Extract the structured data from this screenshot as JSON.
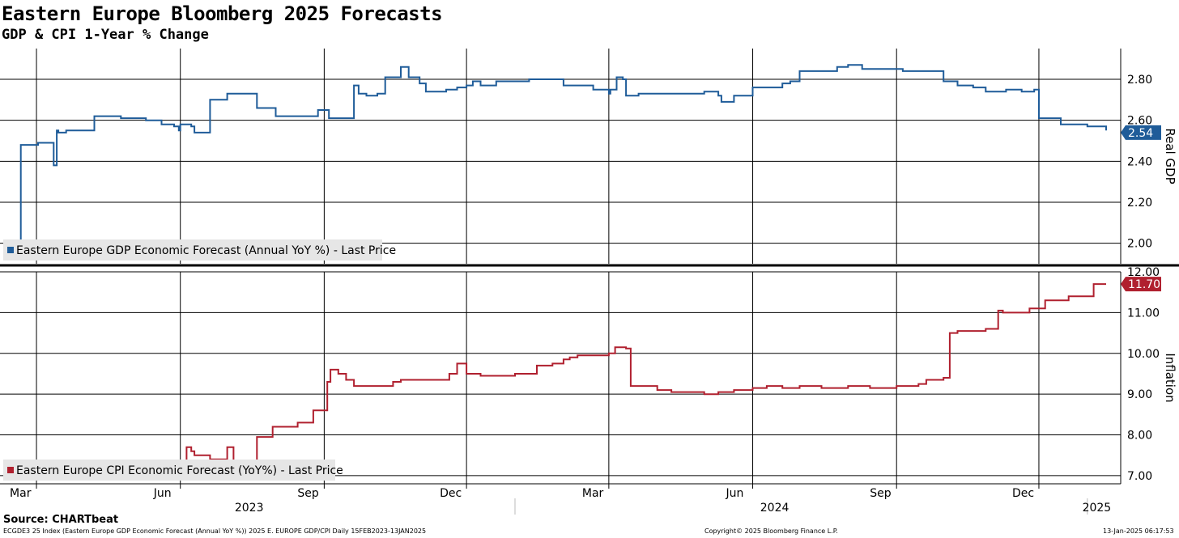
{
  "header": {
    "title": "Eastern Europe Bloomberg 2025 Forecasts",
    "subtitle": "GDP & CPI 1-Year % Change"
  },
  "footer": {
    "source": "Source: CHARTbeat",
    "ticker": "ECGDE3 25 Index (Eastern Europe GDP Economic Forecast (Annual YoY %)) 2025 E. EUROPE GDP/CPI  Daily 15FEB2023-13JAN2025",
    "copyright": "Copyright© 2025 Bloomberg Finance L.P.",
    "timestamp": "13-Jan-2025 06:17:53"
  },
  "colors": {
    "gdp": "#1f5c99",
    "cpi": "#b0202f",
    "grid": "#000000"
  },
  "chart_data": [
    {
      "type": "line",
      "ylabel": "Real GDP",
      "ylim": [
        1.9,
        2.95
      ],
      "yticks": [
        "2.00",
        "2.20",
        "2.40",
        "2.60",
        "2.80"
      ],
      "last_value_label": "2.54",
      "legend": "Eastern Europe GDP Economic Forecast (Annual YoY %) - Last Price",
      "legend_position": "bottom-left",
      "grid": true,
      "series": [
        {
          "name": "Eastern Europe GDP Economic Forecast (Annual YoY %) - Last Price",
          "x": [
            "2023-02-15",
            "2023-02-18",
            "2023-02-19",
            "2023-03-01",
            "2023-03-02",
            "2023-03-10",
            "2023-03-12",
            "2023-03-14",
            "2023-03-15",
            "2023-03-20",
            "2023-04-05",
            "2023-04-07",
            "2023-04-20",
            "2023-04-24",
            "2023-05-08",
            "2023-05-10",
            "2023-05-20",
            "2023-05-28",
            "2023-05-31",
            "2023-06-01",
            "2023-06-05",
            "2023-06-08",
            "2023-06-10",
            "2023-06-20",
            "2023-07-01",
            "2023-07-08",
            "2023-07-10",
            "2023-07-20",
            "2023-08-01",
            "2023-08-10",
            "2023-08-20",
            "2023-08-28",
            "2023-09-01",
            "2023-09-04",
            "2023-09-08",
            "2023-09-12",
            "2023-09-15",
            "2023-09-20",
            "2023-09-23",
            "2023-09-28",
            "2023-10-05",
            "2023-10-10",
            "2023-10-15",
            "2023-10-20",
            "2023-10-25",
            "2023-11-01",
            "2023-11-05",
            "2023-11-12",
            "2023-11-18",
            "2023-11-25",
            "2023-12-01",
            "2023-12-05",
            "2023-12-10",
            "2023-12-20",
            "2024-01-10",
            "2024-01-20",
            "2024-02-01",
            "2024-02-20",
            "2024-03-01",
            "2024-03-02",
            "2024-03-06",
            "2024-03-10",
            "2024-03-12",
            "2024-03-20",
            "2024-04-01",
            "2024-04-10",
            "2024-04-20",
            "2024-05-01",
            "2024-05-10",
            "2024-05-12",
            "2024-05-20",
            "2024-06-01",
            "2024-06-10",
            "2024-06-20",
            "2024-06-25",
            "2024-07-01",
            "2024-07-15",
            "2024-07-25",
            "2024-08-01",
            "2024-08-10",
            "2024-08-20",
            "2024-09-01",
            "2024-09-05",
            "2024-09-10",
            "2024-09-15",
            "2024-09-25",
            "2024-10-01",
            "2024-10-10",
            "2024-10-20",
            "2024-10-28",
            "2024-11-01",
            "2024-11-10",
            "2024-11-20",
            "2024-11-28",
            "2024-12-01",
            "2024-12-15",
            "2025-01-01",
            "2025-01-13"
          ],
          "values": [
            2.0,
            2.0,
            2.48,
            2.48,
            2.49,
            2.49,
            2.38,
            2.55,
            2.54,
            2.55,
            2.55,
            2.62,
            2.62,
            2.61,
            2.61,
            2.6,
            2.58,
            2.57,
            2.55,
            2.58,
            2.58,
            2.57,
            2.54,
            2.7,
            2.73,
            2.73,
            2.73,
            2.66,
            2.62,
            2.62,
            2.62,
            2.65,
            2.65,
            2.61,
            2.61,
            2.61,
            2.61,
            2.77,
            2.73,
            2.72,
            2.73,
            2.81,
            2.81,
            2.86,
            2.81,
            2.78,
            2.74,
            2.74,
            2.75,
            2.76,
            2.77,
            2.79,
            2.77,
            2.79,
            2.8,
            2.8,
            2.77,
            2.75,
            2.73,
            2.75,
            2.81,
            2.8,
            2.72,
            2.73,
            2.73,
            2.73,
            2.73,
            2.74,
            2.72,
            2.69,
            2.72,
            2.76,
            2.76,
            2.78,
            2.79,
            2.84,
            2.84,
            2.86,
            2.87,
            2.85,
            2.85,
            2.85,
            2.84,
            2.84,
            2.84,
            2.84,
            2.79,
            2.77,
            2.76,
            2.74,
            2.74,
            2.75,
            2.74,
            2.75,
            2.61,
            2.58,
            2.57,
            2.55
          ]
        }
      ]
    },
    {
      "type": "line",
      "ylabel": "Inflation",
      "ylim": [
        6.8,
        12.0
      ],
      "yticks": [
        "7.00",
        "8.00",
        "9.00",
        "10.00",
        "11.00",
        "12.00"
      ],
      "last_value_label": "11.70",
      "legend": "Eastern Europe CPI Economic Forecast (YoY%) - Last Price",
      "legend_position": "bottom-left",
      "grid": true,
      "series": [
        {
          "name": "Eastern Europe CPI Economic Forecast (YoY%) - Last Price",
          "x": [
            "2023-02-15",
            "2023-02-22",
            "2023-03-01",
            "2023-03-15",
            "2023-03-17",
            "2023-04-01",
            "2023-04-10",
            "2023-04-12",
            "2023-04-20",
            "2023-05-10",
            "2023-05-18",
            "2023-05-22",
            "2023-05-30",
            "2023-06-01",
            "2023-06-05",
            "2023-06-08",
            "2023-06-10",
            "2023-06-15",
            "2023-06-20",
            "2023-07-01",
            "2023-07-05",
            "2023-07-15",
            "2023-07-20",
            "2023-07-30",
            "2023-08-15",
            "2023-08-25",
            "2023-09-01",
            "2023-09-03",
            "2023-09-05",
            "2023-09-10",
            "2023-09-15",
            "2023-09-20",
            "2023-10-01",
            "2023-10-15",
            "2023-10-20",
            "2023-11-01",
            "2023-11-20",
            "2023-11-25",
            "2023-12-01",
            "2023-12-10",
            "2024-01-01",
            "2024-01-10",
            "2024-01-15",
            "2024-01-25",
            "2024-02-01",
            "2024-02-05",
            "2024-02-10",
            "2024-02-20",
            "2024-03-01",
            "2024-03-05",
            "2024-03-12",
            "2024-03-15",
            "2024-03-25",
            "2024-04-01",
            "2024-04-10",
            "2024-05-01",
            "2024-05-10",
            "2024-05-20",
            "2024-06-01",
            "2024-06-10",
            "2024-06-20",
            "2024-07-01",
            "2024-07-15",
            "2024-08-01",
            "2024-08-15",
            "2024-09-01",
            "2024-09-15",
            "2024-09-20",
            "2024-10-01",
            "2024-10-05",
            "2024-10-10",
            "2024-10-20",
            "2024-10-28",
            "2024-11-05",
            "2024-11-08",
            "2024-11-25",
            "2024-12-01",
            "2024-12-05",
            "2024-12-20",
            "2025-01-01",
            "2025-01-05",
            "2025-01-13"
          ],
          "values": [
            6.95,
            6.95,
            7.15,
            7.15,
            7.2,
            7.15,
            7.12,
            7.12,
            6.95,
            6.95,
            6.98,
            7.0,
            7.0,
            7.35,
            7.7,
            7.6,
            7.5,
            7.5,
            7.4,
            7.7,
            7.35,
            7.35,
            7.95,
            8.2,
            8.3,
            8.6,
            8.6,
            9.3,
            9.6,
            9.5,
            9.35,
            9.2,
            9.2,
            9.3,
            9.35,
            9.35,
            9.5,
            9.75,
            9.5,
            9.45,
            9.5,
            9.5,
            9.7,
            9.75,
            9.85,
            9.9,
            9.95,
            9.95,
            10.0,
            10.15,
            10.12,
            9.2,
            9.2,
            9.1,
            9.05,
            9.0,
            9.05,
            9.1,
            9.15,
            9.2,
            9.15,
            9.2,
            9.15,
            9.2,
            9.15,
            9.2,
            9.25,
            9.35,
            9.4,
            10.5,
            10.55,
            10.55,
            10.6,
            11.05,
            11.0,
            11.1,
            11.1,
            11.3,
            11.4,
            11.4,
            11.7,
            11.7
          ]
        }
      ]
    }
  ],
  "xaxis": {
    "month_labels": [
      {
        "date": "2023-03-01",
        "label": "Mar"
      },
      {
        "date": "2023-06-01",
        "label": "Jun"
      },
      {
        "date": "2023-09-01",
        "label": "Sep"
      },
      {
        "date": "2023-12-01",
        "label": "Dec"
      },
      {
        "date": "2024-03-01",
        "label": "Mar"
      },
      {
        "date": "2024-06-01",
        "label": "Jun"
      },
      {
        "date": "2024-09-01",
        "label": "Sep"
      },
      {
        "date": "2024-12-01",
        "label": "Dec"
      }
    ],
    "year_labels": [
      {
        "label": "2023",
        "date": "2023-07-15"
      },
      {
        "label": "2024",
        "date": "2024-06-15"
      },
      {
        "label": "2025",
        "date": "2025-01-07"
      }
    ],
    "year_dividers": [
      "2024-01-01",
      "2025-01-01"
    ],
    "range": [
      "2023-02-15",
      "2025-01-13"
    ]
  }
}
